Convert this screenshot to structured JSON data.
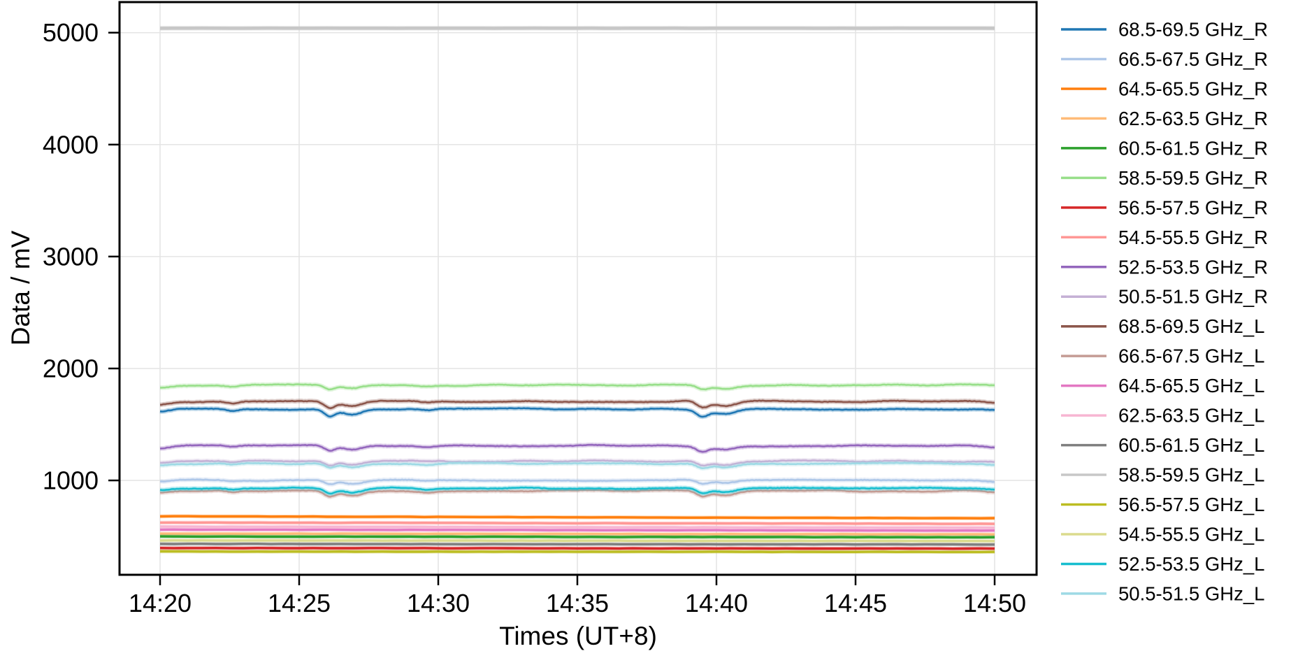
{
  "chart_data": {
    "type": "line",
    "title": "",
    "xlabel": "Times (UT+8)",
    "ylabel": "Data / mV",
    "x_tick_labels": [
      "14:20",
      "14:25",
      "14:30",
      "14:35",
      "14:40",
      "14:45",
      "14:50"
    ],
    "x_tick_minutes": [
      0,
      5,
      10,
      15,
      20,
      25,
      30
    ],
    "y_ticks": [
      1000,
      2000,
      3000,
      4000,
      5000
    ],
    "x_range_minutes": [
      0,
      30
    ],
    "ylim": [
      157,
      5273
    ],
    "grid": true,
    "legend_position": "right-outside",
    "sample_minutes": [
      0,
      5,
      10,
      15,
      20,
      25,
      30
    ],
    "series": [
      {
        "label": "68.5-69.5 GHz_R",
        "color": "#1f77b4",
        "profile": "wavy",
        "base": 1638,
        "dip_depth": 62,
        "seed": 11,
        "samples": [
          1612,
          1638,
          1638,
          1638,
          1600,
          1638,
          1626
        ]
      },
      {
        "label": "66.5-67.5 GHz_R",
        "color": "#aec7e8",
        "profile": "wavy",
        "base": 1002,
        "dip_depth": 36,
        "seed": 12,
        "samples": [
          986,
          1002,
          1002,
          1002,
          980,
          1002,
          995
        ]
      },
      {
        "label": "64.5-65.5 GHz_R",
        "color": "#ff7f0e",
        "profile": "flat",
        "base": 680,
        "end": 662,
        "seed": 13,
        "samples": [
          680,
          677,
          674,
          671,
          668,
          665,
          662
        ]
      },
      {
        "label": "62.5-63.5 GHz_R",
        "color": "#ffbb78",
        "profile": "flat",
        "base": 525,
        "end": 518,
        "seed": 14,
        "samples": [
          525,
          524,
          523,
          521,
          520,
          519,
          518
        ]
      },
      {
        "label": "60.5-61.5 GHz_R",
        "color": "#2ca02c",
        "profile": "flat",
        "base": 499,
        "end": 492,
        "seed": 15,
        "samples": [
          499,
          498,
          497,
          495,
          494,
          493,
          492
        ]
      },
      {
        "label": "58.5-59.5 GHz_R",
        "color": "#98df8a",
        "profile": "wavy",
        "base": 1852,
        "dip_depth": 38,
        "seed": 16,
        "samples": [
          1835,
          1852,
          1852,
          1852,
          1829,
          1852,
          1844
        ]
      },
      {
        "label": "56.5-57.5 GHz_R",
        "color": "#d62728",
        "profile": "flat",
        "base": 396,
        "end": 391,
        "seed": 17,
        "samples": [
          396,
          395,
          394,
          393,
          392,
          392,
          391
        ]
      },
      {
        "label": "54.5-55.5 GHz_R",
        "color": "#ff9896",
        "profile": "flat",
        "base": 624,
        "end": 612,
        "seed": 18,
        "samples": [
          624,
          622,
          620,
          618,
          616,
          614,
          612
        ]
      },
      {
        "label": "52.5-53.5 GHz_R",
        "color": "#9467bd",
        "profile": "wavy",
        "base": 1310,
        "dip_depth": 48,
        "seed": 19,
        "samples": [
          1288,
          1310,
          1310,
          1310,
          1281,
          1310,
          1300
        ]
      },
      {
        "label": "50.5-51.5 GHz_R",
        "color": "#c5b0d5",
        "profile": "wavy",
        "base": 1172,
        "dip_depth": 40,
        "seed": 20,
        "samples": [
          1154,
          1172,
          1172,
          1172,
          1148,
          1172,
          1164
        ]
      },
      {
        "label": "68.5-69.5 GHz_L",
        "color": "#8c564b",
        "profile": "wavy",
        "base": 1706,
        "dip_depth": 58,
        "seed": 21,
        "samples": [
          1682,
          1706,
          1706,
          1706,
          1671,
          1706,
          1694
        ]
      },
      {
        "label": "66.5-67.5 GHz_L",
        "color": "#c49c94",
        "profile": "wavy",
        "base": 906,
        "dip_depth": 50,
        "seed": 22,
        "samples": [
          884,
          906,
          906,
          906,
          876,
          906,
          896
        ]
      },
      {
        "label": "64.5-65.5 GHz_L",
        "color": "#e377c2",
        "profile": "flat",
        "base": 561,
        "end": 552,
        "seed": 23,
        "samples": [
          561,
          559,
          558,
          556,
          555,
          553,
          552
        ]
      },
      {
        "label": "62.5-63.5 GHz_L",
        "color": "#f7b6d2",
        "profile": "flat",
        "base": 587,
        "end": 578,
        "seed": 24,
        "samples": [
          587,
          585,
          584,
          582,
          581,
          579,
          578
        ]
      },
      {
        "label": "60.5-61.5 GHz_L",
        "color": "#7f7f7f",
        "profile": "flat",
        "base": 433,
        "end": 428,
        "seed": 25,
        "samples": [
          433,
          432,
          431,
          430,
          430,
          429,
          428
        ]
      },
      {
        "label": "58.5-59.5 GHz_L",
        "color": "#c7c7c7",
        "profile": "saturated",
        "base": 5040,
        "seed": 26,
        "samples": [
          5040,
          5040,
          5040,
          5040,
          5040,
          5040,
          5040
        ]
      },
      {
        "label": "56.5-57.5 GHz_L",
        "color": "#bcbd22",
        "profile": "flat",
        "base": 365,
        "end": 361,
        "seed": 27,
        "samples": [
          365,
          364,
          363,
          363,
          362,
          362,
          361
        ]
      },
      {
        "label": "54.5-55.5 GHz_L",
        "color": "#dbdb8d",
        "profile": "flat",
        "base": 464,
        "end": 459,
        "seed": 28,
        "samples": [
          464,
          463,
          462,
          461,
          461,
          460,
          459
        ]
      },
      {
        "label": "52.5-53.5 GHz_L",
        "color": "#17becf",
        "profile": "wavy",
        "base": 930,
        "dip_depth": 45,
        "seed": 29,
        "samples": [
          910,
          930,
          930,
          930,
          903,
          930,
          921
        ]
      },
      {
        "label": "50.5-51.5 GHz_L",
        "color": "#9edae5",
        "profile": "wavy",
        "base": 1150,
        "dip_depth": 40,
        "seed": 30,
        "samples": [
          1132,
          1150,
          1150,
          1150,
          1126,
          1150,
          1142
        ]
      }
    ],
    "event_dips_minutes": [
      6.2,
      19.6
    ],
    "saturation_level_mv": 5040
  }
}
